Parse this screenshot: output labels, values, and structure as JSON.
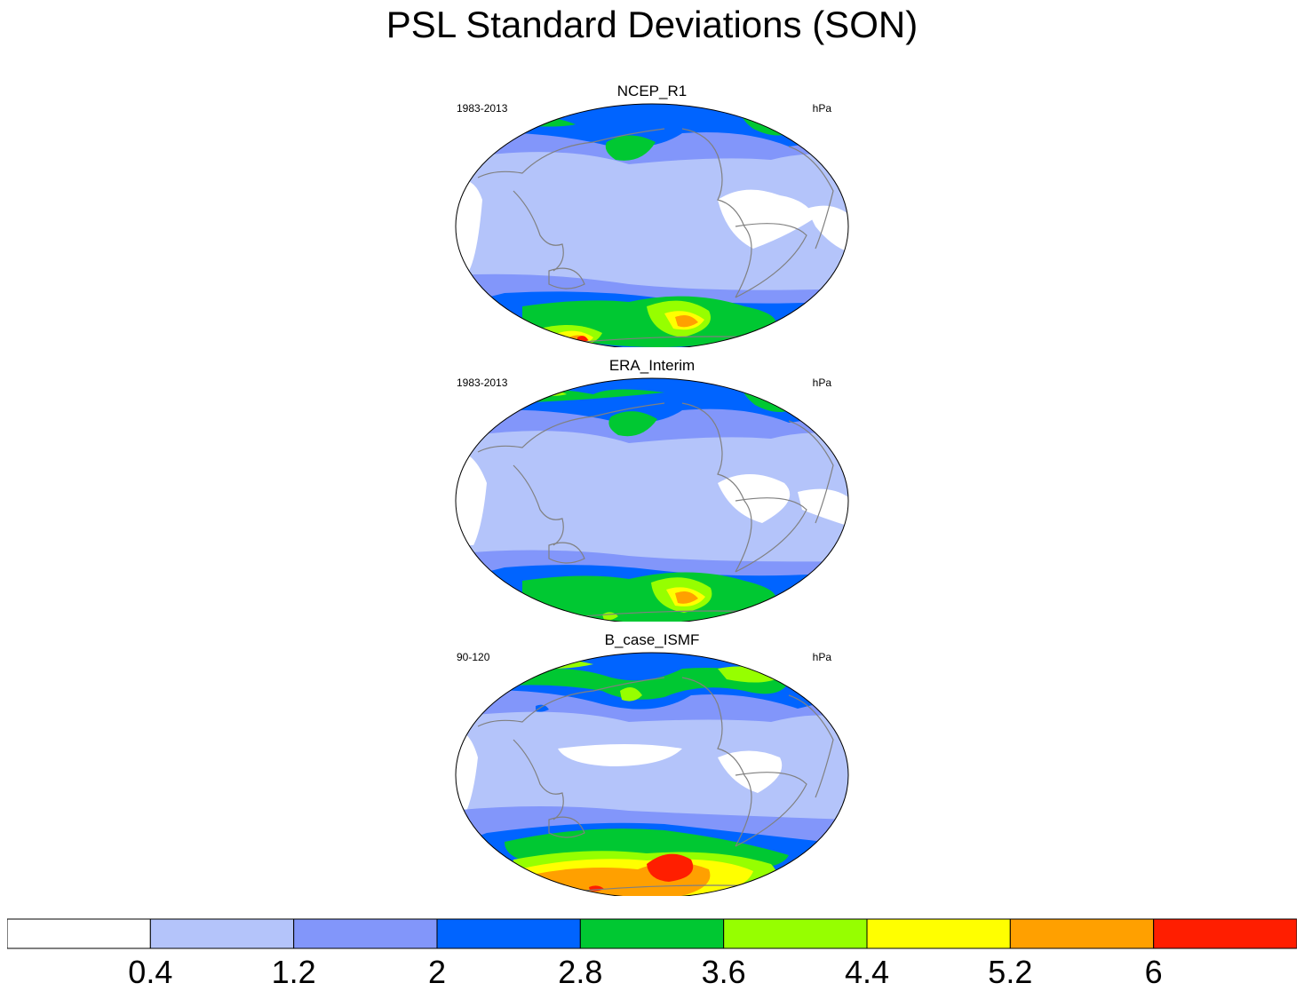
{
  "title": "PSL Standard Deviations (SON)",
  "panels": [
    {
      "name": "NCEP_R1",
      "period": "1983-2013",
      "units": "hPa"
    },
    {
      "name": "ERA_Interim",
      "period": "1983-2013",
      "units": "hPa"
    },
    {
      "name": "B_case_ISMF",
      "period": "90-120",
      "units": "hPa"
    }
  ],
  "colorbar": {
    "levels": [
      "0.4",
      "1.2",
      "2",
      "2.8",
      "3.6",
      "4.4",
      "5.2",
      "6"
    ],
    "colors": [
      "#ffffff",
      "#b4c4fa",
      "#8296fa",
      "#0064ff",
      "#00c832",
      "#96ff00",
      "#ffff00",
      "#ffa000",
      "#ff1e00"
    ]
  }
}
